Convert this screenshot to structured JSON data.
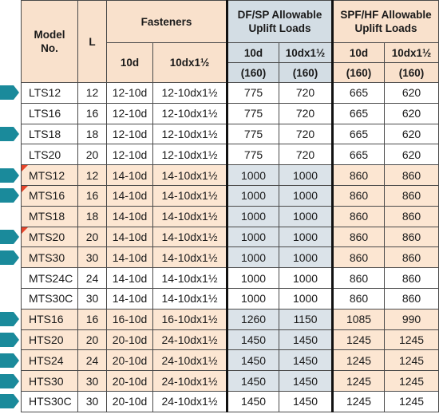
{
  "headers": {
    "model": "Model No.",
    "length": "L",
    "fasteners": "Fasteners",
    "fast_10d": "10d",
    "fast_10dx": "10dx1½",
    "df_sp": "DF/SP Allowable Uplift Loads",
    "spf_hf": "SPF/HF Allowable Uplift Loads",
    "df_10d": "10d",
    "df_10dx": "10dx1½",
    "spf_10d": "10d",
    "spf_10dx": "10dx1½",
    "df_10d_dur": "(160)",
    "df_10dx_dur": "(160)",
    "spf_10d_dur": "(160)",
    "spf_10dx_dur": "(160)"
  },
  "colors": {
    "header_bg": "#f9e1cc",
    "df_header_bg": "#d3dde4",
    "orange_row_bg": "#fce6d2",
    "df_cell_bg": "#dbe3e9",
    "marker_teal": "#1a8a9b",
    "flag_red": "#e8452a"
  },
  "rows": [
    {
      "model": "LTS12",
      "L": "12",
      "f10d": "12-10d",
      "f10dx": "12-10dx1½",
      "df10d": "775",
      "df10dx": "720",
      "spf10d": "665",
      "spf10dx": "620",
      "marker": true,
      "flag": false,
      "orange": false
    },
    {
      "model": "LTS16",
      "L": "16",
      "f10d": "12-10d",
      "f10dx": "12-10dx1½",
      "df10d": "775",
      "df10dx": "720",
      "spf10d": "665",
      "spf10dx": "620",
      "marker": false,
      "flag": false,
      "orange": false
    },
    {
      "model": "LTS18",
      "L": "18",
      "f10d": "12-10d",
      "f10dx": "12-10dx1½",
      "df10d": "775",
      "df10dx": "720",
      "spf10d": "665",
      "spf10dx": "620",
      "marker": true,
      "flag": false,
      "orange": false
    },
    {
      "model": "LTS20",
      "L": "20",
      "f10d": "12-10d",
      "f10dx": "12-10dx1½",
      "df10d": "775",
      "df10dx": "720",
      "spf10d": "665",
      "spf10dx": "620",
      "marker": false,
      "flag": false,
      "orange": false
    },
    {
      "model": "MTS12",
      "L": "12",
      "f10d": "14-10d",
      "f10dx": "14-10dx1½",
      "df10d": "1000",
      "df10dx": "1000",
      "spf10d": "860",
      "spf10dx": "860",
      "marker": true,
      "flag": true,
      "orange": true
    },
    {
      "model": "MTS16",
      "L": "16",
      "f10d": "14-10d",
      "f10dx": "14-10dx1½",
      "df10d": "1000",
      "df10dx": "1000",
      "spf10d": "860",
      "spf10dx": "860",
      "marker": true,
      "flag": true,
      "orange": true
    },
    {
      "model": "MTS18",
      "L": "18",
      "f10d": "14-10d",
      "f10dx": "14-10dx1½",
      "df10d": "1000",
      "df10dx": "1000",
      "spf10d": "860",
      "spf10dx": "860",
      "marker": false,
      "flag": false,
      "orange": true
    },
    {
      "model": "MTS20",
      "L": "20",
      "f10d": "14-10d",
      "f10dx": "14-10dx1½",
      "df10d": "1000",
      "df10dx": "1000",
      "spf10d": "860",
      "spf10dx": "860",
      "marker": true,
      "flag": true,
      "orange": true
    },
    {
      "model": "MTS30",
      "L": "30",
      "f10d": "14-10d",
      "f10dx": "14-10dx1½",
      "df10d": "1000",
      "df10dx": "1000",
      "spf10d": "860",
      "spf10dx": "860",
      "marker": true,
      "flag": false,
      "orange": true
    },
    {
      "model": "MTS24C",
      "L": "24",
      "f10d": "14-10d",
      "f10dx": "14-10dx1½",
      "df10d": "1000",
      "df10dx": "1000",
      "spf10d": "860",
      "spf10dx": "860",
      "marker": false,
      "flag": false,
      "orange": false
    },
    {
      "model": "MTS30C",
      "L": "30",
      "f10d": "14-10d",
      "f10dx": "14-10dx1½",
      "df10d": "1000",
      "df10dx": "1000",
      "spf10d": "860",
      "spf10dx": "860",
      "marker": false,
      "flag": false,
      "orange": false
    },
    {
      "model": "HTS16",
      "L": "16",
      "f10d": "16-10d",
      "f10dx": "16-10dx1½",
      "df10d": "1260",
      "df10dx": "1150",
      "spf10d": "1085",
      "spf10dx": "990",
      "marker": true,
      "flag": false,
      "orange": true
    },
    {
      "model": "HTS20",
      "L": "20",
      "f10d": "20-10d",
      "f10dx": "24-10dx1½",
      "df10d": "1450",
      "df10dx": "1450",
      "spf10d": "1245",
      "spf10dx": "1245",
      "marker": true,
      "flag": false,
      "orange": true
    },
    {
      "model": "HTS24",
      "L": "24",
      "f10d": "20-10d",
      "f10dx": "24-10dx1½",
      "df10d": "1450",
      "df10dx": "1450",
      "spf10d": "1245",
      "spf10dx": "1245",
      "marker": true,
      "flag": false,
      "orange": true
    },
    {
      "model": "HTS30",
      "L": "30",
      "f10d": "20-10d",
      "f10dx": "24-10dx1½",
      "df10d": "1450",
      "df10dx": "1450",
      "spf10d": "1245",
      "spf10dx": "1245",
      "marker": true,
      "flag": false,
      "orange": true
    },
    {
      "model": "HTS30C",
      "L": "30",
      "f10d": "20-10d",
      "f10dx": "24-10dx1½",
      "df10d": "1450",
      "df10dx": "1450",
      "spf10d": "1245",
      "spf10dx": "1245",
      "marker": true,
      "flag": false,
      "orange": false
    }
  ]
}
